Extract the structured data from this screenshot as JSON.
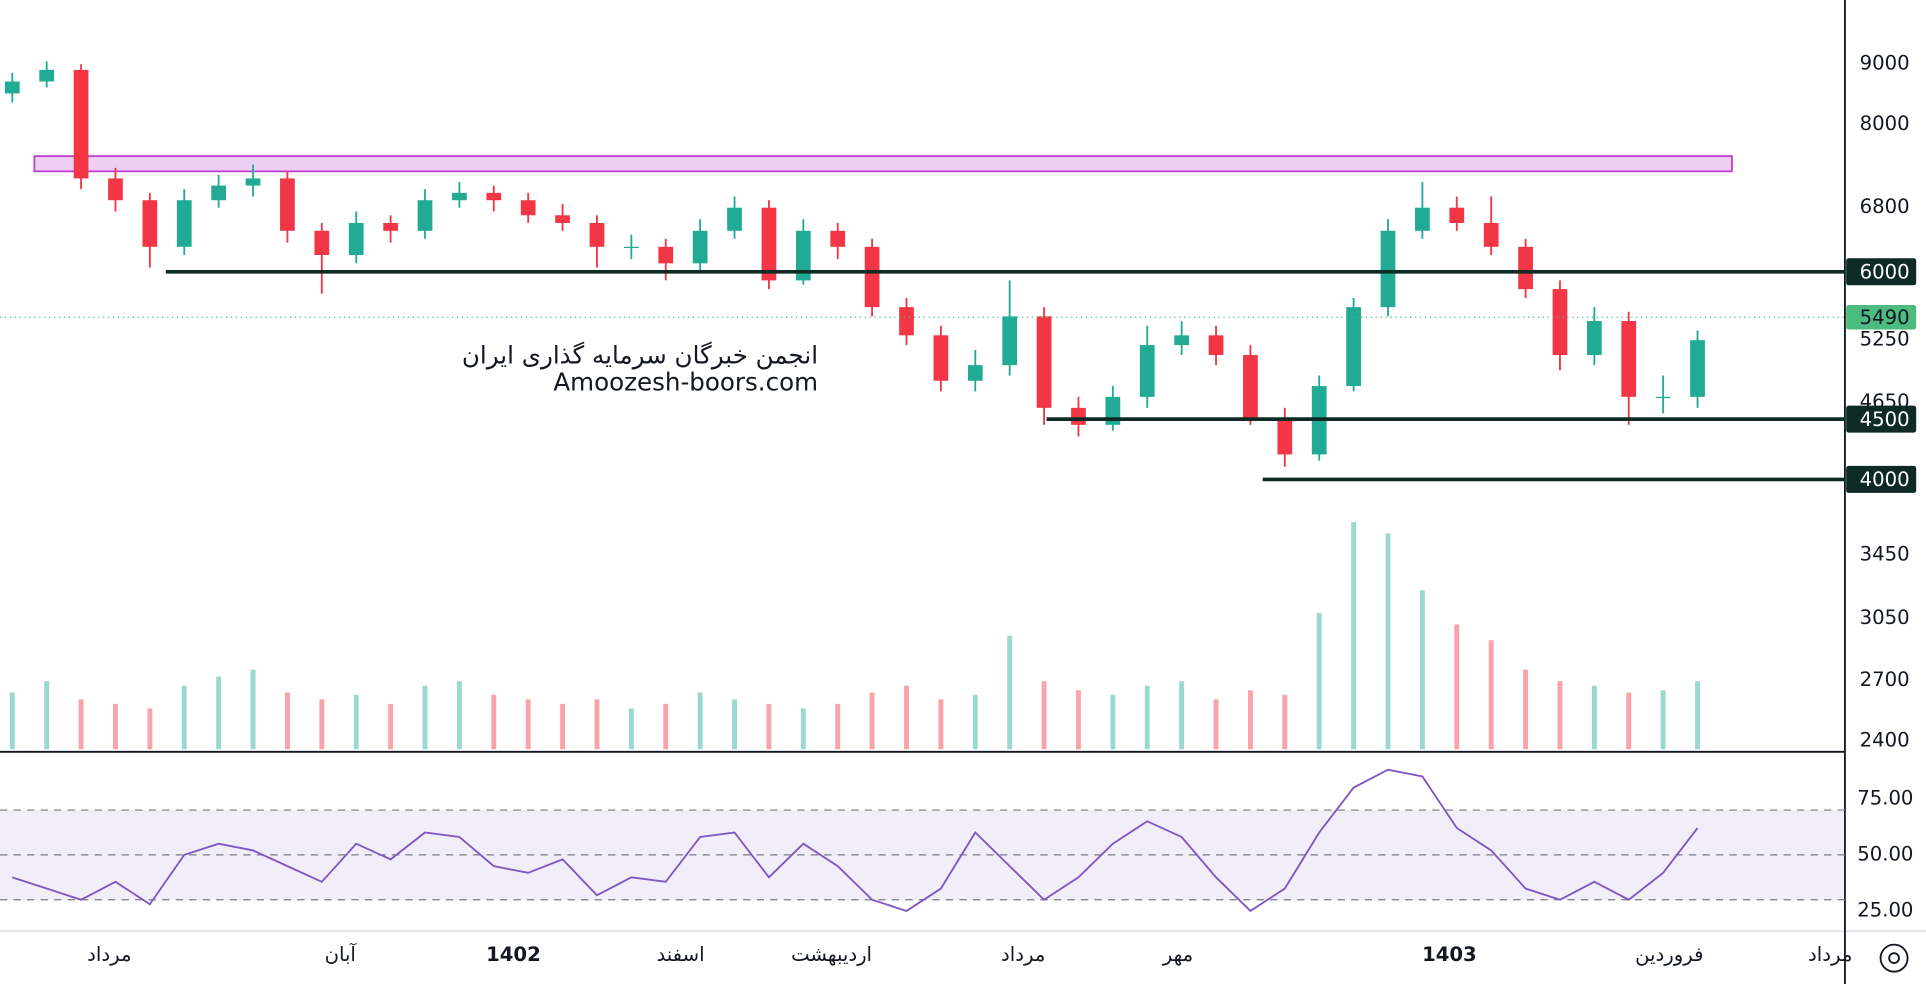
{
  "chart_data": [
    {
      "type": "candlestick",
      "open": [
        8500,
        8700,
        8900,
        7200,
        6900,
        6300,
        6900,
        7100,
        7200,
        6500,
        6200,
        6600,
        6500,
        6900,
        7000,
        6900,
        6700,
        6600,
        6300,
        6300,
        6100,
        6500,
        6800,
        5900,
        6500,
        6300,
        5600,
        5300,
        4850,
        5000,
        5500,
        4600,
        4450,
        4700,
        5200,
        5300,
        5100,
        4500,
        4200,
        4800,
        5600,
        6500,
        6800,
        6600,
        6300,
        5800,
        5100,
        5450,
        4700,
        4700
      ],
      "high": [
        8850,
        9050,
        9000,
        7350,
        7000,
        7050,
        7250,
        7400,
        7300,
        6600,
        6750,
        6700,
        7050,
        7150,
        7100,
        7000,
        6850,
        6700,
        6450,
        6400,
        6650,
        6950,
        6900,
        6650,
        6600,
        6400,
        5700,
        5400,
        5150,
        5900,
        5600,
        4700,
        4800,
        5400,
        5450,
        5400,
        5200,
        4600,
        4900,
        5700,
        6650,
        7150,
        6950,
        6950,
        6400,
        5900,
        5600,
        5550,
        4900,
        5350
      ],
      "low": [
        8350,
        8600,
        7050,
        6750,
        6050,
        6200,
        6800,
        6950,
        6350,
        5750,
        6100,
        6350,
        6400,
        6800,
        6750,
        6600,
        6500,
        6050,
        6150,
        5900,
        6000,
        6400,
        5800,
        5850,
        6150,
        5500,
        5200,
        4750,
        4750,
        4900,
        4450,
        4350,
        4400,
        4600,
        5100,
        5000,
        4450,
        4100,
        4150,
        4750,
        5500,
        6400,
        6500,
        6200,
        5700,
        4950,
        5000,
        4450,
        4550,
        4600
      ],
      "close": [
        8700,
        8900,
        7200,
        6900,
        6300,
        6900,
        7100,
        7200,
        6500,
        6200,
        6600,
        6500,
        6900,
        7000,
        6900,
        6700,
        6600,
        6300,
        6300,
        6100,
        6500,
        6800,
        5900,
        6500,
        6300,
        5600,
        5300,
        4850,
        5000,
        5500,
        4600,
        4450,
        4700,
        5200,
        5300,
        5100,
        4500,
        4200,
        4800,
        5600,
        6500,
        6800,
        6600,
        6300,
        5800,
        5100,
        5450,
        4700,
        4700,
        5250
      ],
      "up_color": "#22ab94",
      "down_color": "#f23645",
      "ylim": [
        2350,
        10200
      ],
      "log_scale": true,
      "yticks": [
        9000,
        8000,
        6800,
        5250,
        4650,
        3450,
        3050,
        2700,
        2400
      ],
      "levels": [
        6000,
        4500,
        4000
      ],
      "level_color": "#0d2b24",
      "zone": [
        7300,
        7520
      ],
      "zone_color": "#c040d0",
      "last_price": 5490,
      "last_price_color": "#4cbb7f",
      "annotations": [
        "انجمن خبرگان سرمایه گذاری ایران",
        "Amoozesh-boors.com"
      ]
    },
    {
      "type": "bar",
      "values": [
        25,
        30,
        22,
        20,
        18,
        28,
        32,
        35,
        25,
        22,
        24,
        20,
        28,
        30,
        24,
        22,
        20,
        22,
        18,
        20,
        25,
        22,
        20,
        18,
        20,
        25,
        28,
        22,
        24,
        50,
        30,
        26,
        24,
        28,
        30,
        22,
        26,
        24,
        60,
        100,
        95,
        70,
        55,
        48,
        35,
        30,
        28,
        25,
        26,
        30
      ]
    },
    {
      "type": "line",
      "values": [
        40,
        35,
        30,
        38,
        28,
        50,
        55,
        52,
        45,
        38,
        55,
        48,
        60,
        58,
        45,
        42,
        48,
        32,
        40,
        38,
        58,
        60,
        40,
        55,
        45,
        30,
        25,
        35,
        60,
        45,
        30,
        40,
        55,
        65,
        58,
        40,
        25,
        35,
        60,
        80,
        88,
        85,
        62,
        52,
        35,
        30,
        38,
        30,
        42,
        62
      ],
      "color": "#7e57c2",
      "ylim": [
        16,
        96
      ],
      "yticks": [
        {
          "value": 75,
          "label": "75.00"
        },
        {
          "value": 50,
          "label": "50.00"
        },
        {
          "value": 25,
          "label": "25.00"
        }
      ],
      "bands": [
        30,
        50,
        70
      ]
    }
  ],
  "time_axis": {
    "labels": [
      "مرداد",
      "آبان",
      "1402",
      "اسفند",
      "اردیبهشت",
      "مرداد",
      "مهر",
      "1403",
      "فروردین",
      "مرداد"
    ]
  }
}
